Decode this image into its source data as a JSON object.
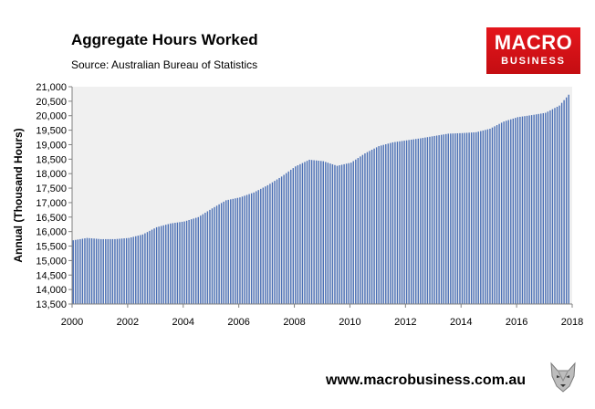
{
  "header": {
    "title": "Aggregate Hours Worked",
    "subtitle": "Source: Australian Bureau of Statistics"
  },
  "logo": {
    "line1": "MACRO",
    "line2": "BUSINESS"
  },
  "footer": {
    "url": "www.macrobusiness.com.au"
  },
  "colors": {
    "bar": "#4a6fb5",
    "plot_bg": "#f0f0f0",
    "logo_red": "#e4161c"
  },
  "chart_data": {
    "type": "bar",
    "title": "Aggregate Hours Worked",
    "subtitle": "Source: Australian Bureau of Statistics",
    "ylabel": "Annual (Thousand Hours)",
    "ylim": [
      13500,
      21000
    ],
    "yticks": [
      "13,500",
      "14,000",
      "14,500",
      "15,000",
      "15,500",
      "16,000",
      "16,500",
      "17,000",
      "17,500",
      "18,000",
      "18,500",
      "19,000",
      "19,500",
      "20,000",
      "20,500",
      "21,000"
    ],
    "xticks": [
      "2000",
      "2002",
      "2004",
      "2006",
      "2008",
      "2010",
      "2012",
      "2014",
      "2016",
      "2018"
    ],
    "x_start": "2000",
    "frequency": "monthly",
    "series": [
      {
        "anchors": [
          [
            "2000.0",
            15700
          ],
          [
            "2000.5",
            15780
          ],
          [
            "2001.0",
            15740
          ],
          [
            "2001.5",
            15740
          ],
          [
            "2002.0",
            15780
          ],
          [
            "2002.5",
            15900
          ],
          [
            "2003.0",
            16150
          ],
          [
            "2003.5",
            16280
          ],
          [
            "2004.0",
            16350
          ],
          [
            "2004.5",
            16500
          ],
          [
            "2005.0",
            16800
          ],
          [
            "2005.5",
            17080
          ],
          [
            "2006.0",
            17180
          ],
          [
            "2006.5",
            17350
          ],
          [
            "2007.0",
            17600
          ],
          [
            "2007.5",
            17900
          ],
          [
            "2008.0",
            18250
          ],
          [
            "2008.5",
            18480
          ],
          [
            "2009.0",
            18430
          ],
          [
            "2009.5",
            18270
          ],
          [
            "2010.0",
            18380
          ],
          [
            "2010.5",
            18700
          ],
          [
            "2011.0",
            18950
          ],
          [
            "2011.5",
            19080
          ],
          [
            "2012.0",
            19150
          ],
          [
            "2012.5",
            19220
          ],
          [
            "2013.0",
            19300
          ],
          [
            "2013.5",
            19380
          ],
          [
            "2014.0",
            19400
          ],
          [
            "2014.5",
            19430
          ],
          [
            "2015.0",
            19550
          ],
          [
            "2015.5",
            19800
          ],
          [
            "2016.0",
            19950
          ],
          [
            "2016.5",
            20020
          ],
          [
            "2017.0",
            20100
          ],
          [
            "2017.5",
            20350
          ],
          [
            "2017.9",
            20800
          ]
        ]
      }
    ]
  }
}
